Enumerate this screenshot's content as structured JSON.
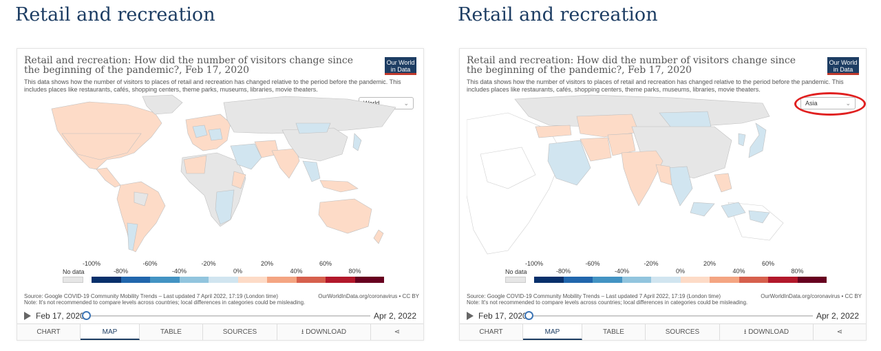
{
  "panels": [
    {
      "heading": "Retail and recreation",
      "chart_title": "Retail and recreation: How did the number of visitors change since the beginning of the pandemic?, Feb 17, 2020",
      "chart_subtitle": "This data shows how the number of visitors to places of retail and recreation has changed relative to the period before the pandemic. This includes places like restaurants, cafés, shopping centers, theme parks, museums, libraries, movie theaters.",
      "logo_text": "Our World in Data",
      "region": "World"
    },
    {
      "heading": "Retail and recreation",
      "chart_title": "Retail and recreation: How did the number of visitors change since the beginning of the pandemic?, Feb 17, 2020",
      "chart_subtitle": "This data shows how the number of visitors to places of retail and recreation has changed relative to the period before the pandemic. This includes places like restaurants, cafés, shopping centers, theme parks, museums, libraries, movie theaters.",
      "logo_text": "Our World in Data",
      "region": "Asia"
    }
  ],
  "legend": {
    "no_data": "No data",
    "ticks_up": [
      "-100%",
      "-60%",
      "-20%",
      "20%",
      "60%"
    ],
    "ticks_down": [
      "-80%",
      "-40%",
      "0%",
      "40%",
      "80%"
    ],
    "colors": [
      "#08306b",
      "#2166ac",
      "#4393c3",
      "#92c5de",
      "#d1e5f0",
      "#fddbc7",
      "#f4a582",
      "#d6604d",
      "#b2182b",
      "#67001f"
    ]
  },
  "source_text": "Source: Google COVID-19 Community Mobility Trends – Last updated 7 April 2022, 17:19 (London time)",
  "note_text": "Note: It's not recommended to compare levels across countries; local differences in categories could be misleading.",
  "source_right": "OurWorldInData.org/coronavirus • CC BY",
  "timeline": {
    "start": "Feb 17, 2020",
    "end": "Apr 2, 2022"
  },
  "tabs": {
    "chart": "CHART",
    "map": "MAP",
    "table": "TABLE",
    "sources": "SOURCES",
    "download": "DOWNLOAD",
    "share_icon": "share-icon",
    "download_icon": "download-icon"
  },
  "map_colors": {
    "positive": "#fddbc7",
    "negative": "#d1e5f0",
    "nodata": "#e6e6e6",
    "outline": "#bfbfbf"
  }
}
